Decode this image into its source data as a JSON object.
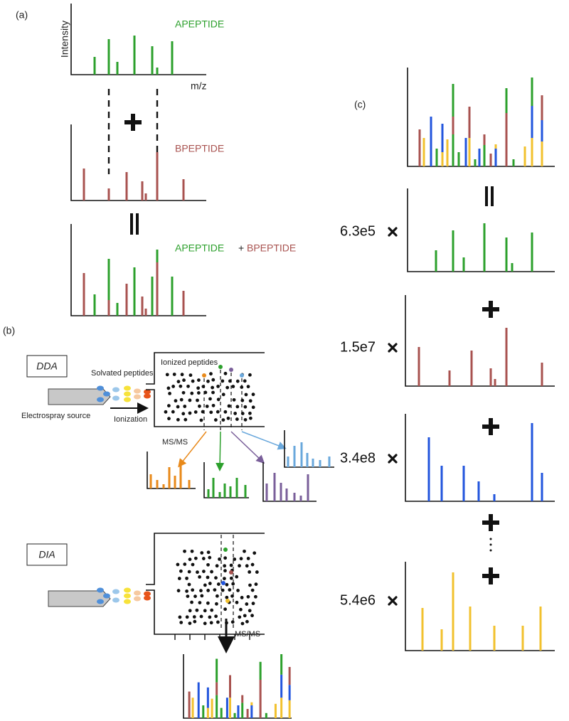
{
  "panel_a": {
    "label": "(a)",
    "y_axis_label": "Intensity",
    "x_axis_label": "m/z",
    "spectrum_1_label": "APEPTIDE",
    "spectrum_2_label": "BPEPTIDE",
    "combined_label": {
      "first": "APEPTIDE",
      "plus": "+",
      "second": "BPEPTIDE"
    }
  },
  "panel_b": {
    "label": "(b)",
    "dda": {
      "mode": "DDA",
      "solvated": "Solvated peptides",
      "ionized": "Ionized peptides",
      "source": "Electrospray source",
      "ionization": "Ionization",
      "msms": "MS/MS"
    },
    "dia": {
      "mode": "DIA",
      "msms": "MS/MS"
    }
  },
  "panel_c": {
    "label": "(c)",
    "coefficients": [
      "6.3e5",
      "1.5e7",
      "3.4e8",
      "5.4e6"
    ]
  }
}
